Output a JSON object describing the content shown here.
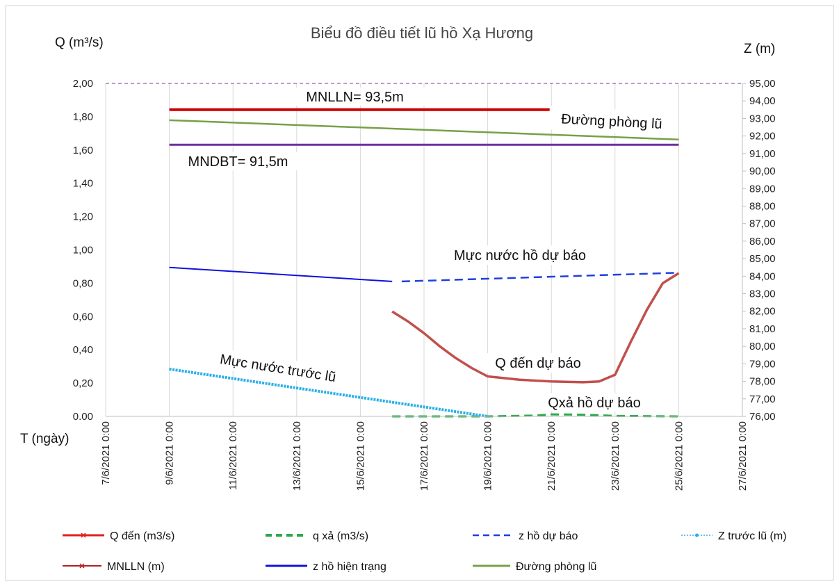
{
  "chart_data": {
    "type": "line",
    "title": "Biểu đồ điều tiết lũ hồ Xạ Hương",
    "y_left_label": "Q (m³/s)",
    "y_right_label": "Z (m)",
    "x_label": "T (ngày)",
    "y_left_range": [
      0,
      2.0
    ],
    "y_right_range": [
      76.0,
      95.0
    ],
    "x_range": [
      "7/6/2021 0:00",
      "27/6/2021 0:00"
    ],
    "y_left_ticks": [
      "0.00",
      "0,20",
      "0,40",
      "0,60",
      "0,80",
      "1,00",
      "1,20",
      "1,40",
      "1,60",
      "1,80",
      "2,00"
    ],
    "y_right_ticks": [
      "76,00",
      "77,00",
      "78,00",
      "79,00",
      "80,00",
      "81,00",
      "82,00",
      "83,00",
      "84,00",
      "85,00",
      "86,00",
      "87,00",
      "88,00",
      "89,00",
      "90,00",
      "91,00",
      "92,00",
      "93,00",
      "94,00",
      "95,00"
    ],
    "x_ticks": [
      "7/6/2021 0:00",
      "9/6/2021 0:00",
      "11/6/2021 0:00",
      "13/6/2021 0:00",
      "15/6/2021 0:00",
      "17/6/2021 0:00",
      "19/6/2021 0:00",
      "21/6/2021 0:00",
      "23/6/2021 0:00",
      "25/6/2021 0:00",
      "27/6/2021 0:00"
    ],
    "grid": "vertical",
    "legend_position": "bottom",
    "annotations": {
      "mnlln": "MNLLN= 93,5m",
      "mndbt": "MNDBT= 91,5m",
      "flood_line": "Đường phòng lũ",
      "forecast_level": "Mực nước hồ dự báo",
      "pre_flood": "Mực nước trước lũ",
      "q_forecast": "Q đến dự báo",
      "q_release": "Qxả hồ dự báo"
    },
    "series": [
      {
        "name": "Q đến (m3/s)",
        "axis": "left",
        "color": "#c0504d",
        "style": "solid",
        "x": [
          16.0,
          16.5,
          17.0,
          17.5,
          18.0,
          18.5,
          19.0,
          20.0,
          21.0,
          22.0,
          22.5,
          23.0,
          23.5,
          24.0,
          24.5,
          25.0
        ],
        "y": [
          0.63,
          0.57,
          0.5,
          0.42,
          0.35,
          0.29,
          0.24,
          0.22,
          0.21,
          0.205,
          0.21,
          0.25,
          0.45,
          0.64,
          0.8,
          0.86
        ]
      },
      {
        "name": "q xả     (m3/s)",
        "axis": "left",
        "color": "#2ca84a",
        "style": "dashed",
        "x": [
          16.0,
          19.0,
          20.5,
          21.0,
          22.0,
          23.0,
          25.0
        ],
        "y": [
          0.0,
          0.0,
          0.005,
          0.012,
          0.01,
          0.003,
          0.0
        ]
      },
      {
        "name": "z hồ dự báo",
        "axis": "right",
        "color": "#1f3fe0",
        "style": "dashed",
        "x": [
          16.3,
          25.0
        ],
        "y": [
          83.7,
          84.2
        ]
      },
      {
        "name": "Z trước lũ (m)",
        "axis": "right",
        "color": "#29b0e6",
        "style": "dotted",
        "x": [
          9.0,
          19.0
        ],
        "y": [
          78.7,
          76.0
        ]
      },
      {
        "name": "MNLLN (m)",
        "axis": "right",
        "color": "#cc0000",
        "style": "solid",
        "x": [
          9.0,
          21.0
        ],
        "y": [
          93.5,
          93.5
        ]
      },
      {
        "name": "z hồ hiện trạng",
        "axis": "right",
        "color": "#1010e0",
        "style": "solid",
        "x": [
          9.0,
          16.0
        ],
        "y": [
          84.5,
          83.7
        ]
      },
      {
        "name": "Đường phòng lũ",
        "axis": "right",
        "color": "#77a048",
        "style": "solid",
        "x": [
          9.0,
          25.0
        ],
        "y": [
          92.9,
          91.8
        ]
      }
    ],
    "reference_lines": [
      {
        "label": "MNDBT",
        "axis": "right",
        "value": 91.5,
        "x": [
          9.0,
          25.0
        ],
        "color": "#7030a0"
      },
      {
        "label": "top",
        "axis": "left",
        "value": 2.0,
        "x": [
          7.0,
          27.0
        ],
        "color": "#9b59b6"
      }
    ]
  }
}
